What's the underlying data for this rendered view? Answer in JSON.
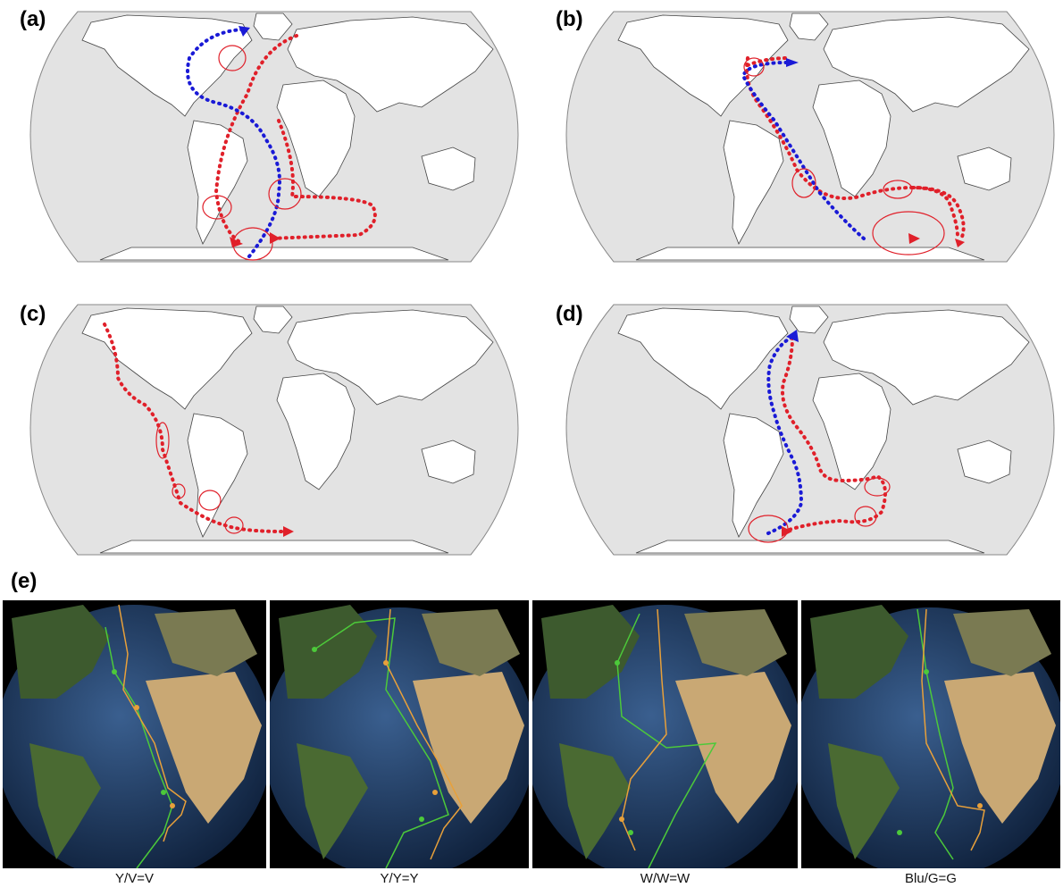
{
  "panels": {
    "a": {
      "label": "(a)"
    },
    "b": {
      "label": "(b)"
    },
    "c": {
      "label": "(c)"
    },
    "d": {
      "label": "(d)"
    },
    "e": {
      "label": "(e)"
    }
  },
  "globes": [
    {
      "caption": "Y/V=V"
    },
    {
      "caption": "Y/Y=Y"
    },
    {
      "caption": "W/W=W"
    },
    {
      "caption": "Blu/G=G"
    }
  ],
  "colors": {
    "ocean": "#e3e3e3",
    "land": "#ffffff",
    "coast": "#444444",
    "red_route": "#e0202a",
    "blue_route": "#1a1ad6",
    "globe_ocean": "#1d3a66",
    "track_green": "#4cc93a",
    "track_orange": "#e8a03a"
  }
}
